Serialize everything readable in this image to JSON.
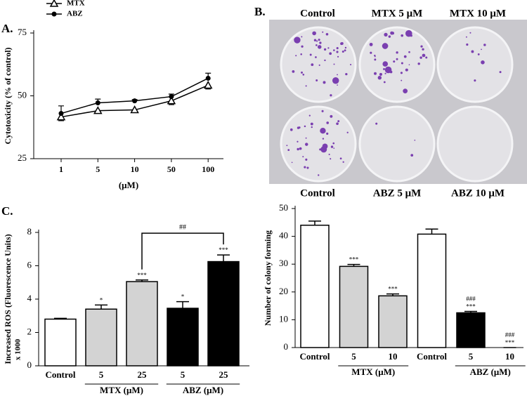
{
  "chart_data": [
    {
      "type": "line",
      "panel_label": "A.",
      "y_label": "Cytotoxicity (% of control)",
      "x_label": "(μM)",
      "categories": [
        "1",
        "5",
        "10",
        "50",
        "100"
      ],
      "series": [
        {
          "name": "MTX",
          "color": "#000000",
          "marker": "triangle-open",
          "values": [
            41.6,
            44.1,
            44.4,
            48,
            54.2
          ],
          "errors": [
            1.5,
            1,
            1,
            1.5,
            1.5
          ]
        },
        {
          "name": "ABZ",
          "color": "#000000",
          "marker": "circle",
          "values": [
            43,
            47.2,
            48,
            49.7,
            57
          ],
          "errors": [
            3,
            1.5,
            0.5,
            1,
            2
          ]
        }
      ],
      "ylim": [
        25,
        75
      ],
      "yticks": [
        25,
        50,
        75
      ]
    },
    {
      "type": "bar",
      "panel_label": "C.",
      "y_label": "Increased ROS (Fluorescence Units)",
      "y_label_2": "x 1000",
      "categories": [
        "Control",
        "5",
        "25",
        "5",
        "25"
      ],
      "values": [
        2.8,
        3.4,
        5.05,
        3.45,
        6.25
      ],
      "errors": [
        0.05,
        0.25,
        0.1,
        0.4,
        0.4
      ],
      "colors": [
        "#ffffff",
        "#d3d3d3",
        "#d3d3d3",
        "#000000",
        "#000000"
      ],
      "groups": [
        {
          "label": "MTX (μM)",
          "start": 1,
          "end": 2
        },
        {
          "label": "ABZ  (μM)",
          "start": 3,
          "end": 4
        }
      ],
      "annotations": [
        {
          "index": 1,
          "lines": [
            "*"
          ]
        },
        {
          "index": 2,
          "lines": [
            "***"
          ]
        },
        {
          "index": 3,
          "lines": [
            "*"
          ]
        },
        {
          "index": 4,
          "lines": [
            "***"
          ]
        }
      ],
      "bracket": {
        "text": "##",
        "from": 2,
        "to": 4
      },
      "ylim": [
        0,
        8
      ],
      "yticks": [
        0,
        2,
        4,
        6,
        8
      ]
    },
    {
      "type": "bar",
      "y_label": "Number of colony forming",
      "categories": [
        "Control",
        "5",
        "10",
        "Control",
        "5",
        "10"
      ],
      "values": [
        44,
        29.2,
        18.6,
        40.8,
        12.5,
        0
      ],
      "errors": [
        1.5,
        0.7,
        0.7,
        1.8,
        0.5,
        0
      ],
      "colors": [
        "#ffffff",
        "#d3d3d3",
        "#d3d3d3",
        "#ffffff",
        "#000000",
        "#000000"
      ],
      "groups": [
        {
          "label": "MTX (μM)",
          "start": 1,
          "end": 2
        },
        {
          "label": "ABZ (μM)",
          "start": 4,
          "end": 5
        }
      ],
      "annotations": [
        {
          "index": 1,
          "lines": [
            "***"
          ]
        },
        {
          "index": 2,
          "lines": [
            "***"
          ]
        },
        {
          "index": 4,
          "lines": [
            "###",
            "***"
          ]
        },
        {
          "index": 5,
          "lines": [
            "###",
            "***"
          ]
        }
      ],
      "ylim": [
        0,
        50
      ],
      "yticks": [
        0,
        10,
        20,
        30,
        40,
        50
      ]
    }
  ],
  "image_panel": {
    "label": "B.",
    "top_labels": [
      "Control",
      "MTX 5 μM",
      "MTX 10 μM"
    ],
    "bottom_labels": [
      "Control",
      "ABZ 5 μM",
      "ABZ 10 μM"
    ]
  }
}
